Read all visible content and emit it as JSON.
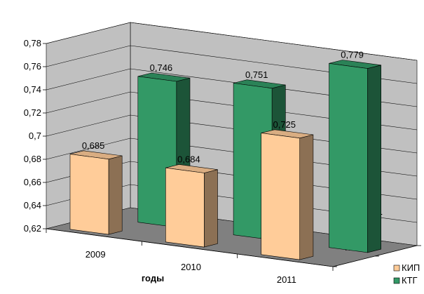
{
  "chart_data": {
    "type": "bar",
    "style": "3d-clustered-depth",
    "categories": [
      "2009",
      "2010",
      "2011"
    ],
    "series": [
      {
        "name": "КИП",
        "values": [
          0.685,
          0.684,
          0.725
        ],
        "labels": [
          "0,685",
          "0,684",
          "0,725"
        ],
        "color": "#ffcc99"
      },
      {
        "name": "КТГ",
        "values": [
          0.746,
          0.751,
          0.779
        ],
        "labels": [
          "0,746",
          "0,751",
          "0,779"
        ],
        "color": "#339966"
      }
    ],
    "depth_labels": [
      "КТГ",
      "КИП"
    ],
    "y_ticks": [
      "0,62",
      "0,64",
      "0,66",
      "0,68",
      "0,7",
      "0,72",
      "0,74",
      "0,76",
      "0,78"
    ],
    "ylim": [
      0.62,
      0.78
    ],
    "xlabel": "годы",
    "ylabel": "",
    "title": "",
    "grid": true,
    "legend": "bottom-right",
    "colors": {
      "wall": "#c0c0c0",
      "floor": "#808080"
    }
  }
}
